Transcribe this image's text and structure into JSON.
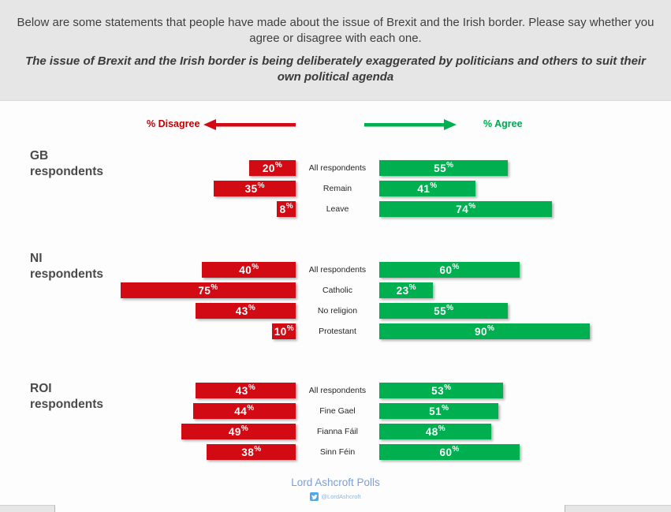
{
  "header": {
    "intro": "Below are some statements that people have made about the issue of Brexit and the Irish border. Please say whether you agree or disagree with each one.",
    "statement": "The issue of Brexit and the Irish border is being deliberately exaggerated by politicians and others to suit their own political agenda"
  },
  "legend": {
    "disagree_label": "% Disagree",
    "agree_label": "% Agree"
  },
  "colors": {
    "disagree_red": "#d20a14",
    "agree_green": "#00af50",
    "legend_red": "#c00000",
    "legend_green": "#00a651",
    "header_bg": "#e7e6e6",
    "footer_blue": "#7d9fd4",
    "twitter_blue": "#4fa8e8"
  },
  "chart_data": {
    "type": "bar",
    "variant": "diverging-horizontal",
    "unit": "%",
    "title": "The issue of Brexit and the Irish border is being deliberately exaggerated by politicians and others to suit their own political agenda",
    "series": [
      "% Disagree",
      "% Agree"
    ],
    "axis": {
      "min": 0,
      "max": 90,
      "gridlines": false
    },
    "legend_position": "top",
    "groups": [
      {
        "label": "GB respondents",
        "rows": [
          {
            "category": "All respondents",
            "disagree": 20,
            "agree": 55
          },
          {
            "category": "Remain",
            "disagree": 35,
            "agree": 41
          },
          {
            "category": "Leave",
            "disagree": 8,
            "agree": 74
          }
        ]
      },
      {
        "label": "NI respondents",
        "rows": [
          {
            "category": "All respondents",
            "disagree": 40,
            "agree": 60
          },
          {
            "category": "Catholic",
            "disagree": 75,
            "agree": 23
          },
          {
            "category": "No religion",
            "disagree": 43,
            "agree": 55
          },
          {
            "category": "Protestant",
            "disagree": 10,
            "agree": 90
          }
        ]
      },
      {
        "label": "ROI respondents",
        "rows": [
          {
            "category": "All respondents",
            "disagree": 43,
            "agree": 53
          },
          {
            "category": "Fine Gael",
            "disagree": 44,
            "agree": 51
          },
          {
            "category": "Fianna Fáil",
            "disagree": 49,
            "agree": 48
          },
          {
            "category": "Sinn Féin",
            "disagree": 38,
            "agree": 60
          }
        ]
      }
    ]
  },
  "footer": {
    "source": "Lord Ashcroft Polls",
    "twitter_handle": "@LordAshcroft"
  }
}
